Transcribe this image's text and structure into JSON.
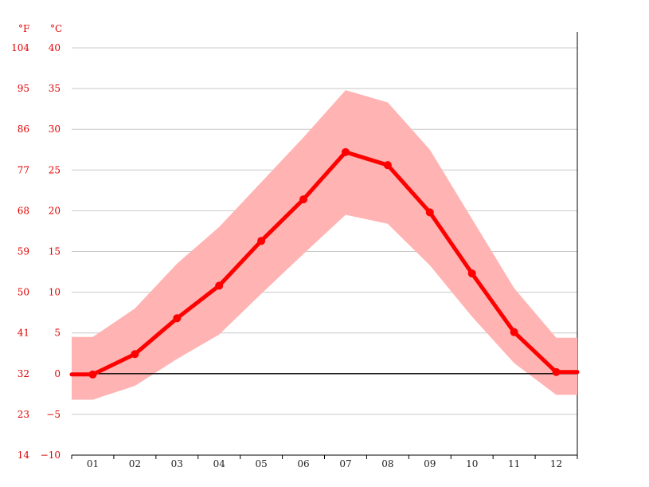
{
  "chart_data": {
    "type": "line",
    "title": "",
    "unit_labels": {
      "fahrenheit": "°F",
      "celsius": "°C"
    },
    "categories": [
      "01",
      "02",
      "03",
      "04",
      "05",
      "06",
      "07",
      "08",
      "09",
      "10",
      "11",
      "12"
    ],
    "y_ticks_celsius": [
      "40",
      "35",
      "30",
      "25",
      "20",
      "15",
      "10",
      "5",
      "0",
      "−5",
      "−10"
    ],
    "y_ticks_fahrenheit": [
      "104",
      "95",
      "86",
      "77",
      "68",
      "59",
      "50",
      "41",
      "32",
      "23",
      "14"
    ],
    "ylim": [
      -10,
      40
    ],
    "grid": true,
    "series": [
      {
        "values": [
          -0.1,
          2.4,
          6.8,
          10.8,
          16.3,
          21.4,
          27.2,
          25.6,
          19.8,
          12.3,
          5.1,
          0.2
        ],
        "color": "#ff0000"
      }
    ],
    "band": {
      "upper": [
        4.5,
        8.0,
        13.5,
        18.0,
        23.5,
        29.0,
        34.8,
        33.3,
        27.5,
        19.0,
        10.5,
        4.4
      ],
      "lower": [
        -3.2,
        -1.5,
        1.8,
        4.8,
        9.8,
        14.7,
        19.5,
        18.4,
        13.3,
        7.0,
        1.3,
        -2.6
      ],
      "color": "#ffb3b3"
    }
  }
}
